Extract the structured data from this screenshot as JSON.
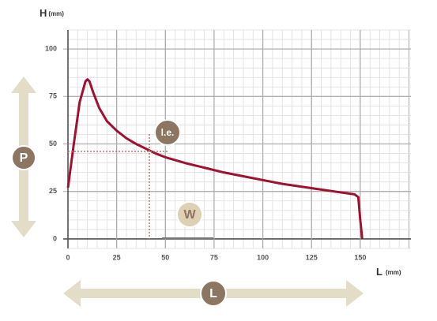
{
  "chart_data": {
    "type": "line",
    "y_label": "H",
    "y_unit": "(mm)",
    "x_label": "L",
    "x_unit": "(mm)",
    "annotations": {
      "p": "P",
      "le": "l.e.",
      "w": "W",
      "l": "L"
    },
    "x": [
      0,
      3,
      6,
      9,
      10,
      11,
      13,
      16,
      20,
      25,
      30,
      35,
      40,
      45,
      50,
      60,
      70,
      80,
      90,
      100,
      110,
      120,
      130,
      140,
      147,
      149,
      150,
      151
    ],
    "series": [
      {
        "color": "#a0112f",
        "values": [
          27,
          50,
          72,
          83,
          84,
          83,
          77,
          69,
          62,
          57,
          53,
          50,
          47.5,
          45,
          43,
          40,
          37.5,
          35,
          33,
          31,
          29,
          27.5,
          26,
          24.5,
          23.5,
          22,
          10,
          0
        ]
      }
    ],
    "xlim": [
      0,
      176
    ],
    "ylim": [
      -5,
      110
    ],
    "xticks": [
      0,
      25,
      50,
      75,
      100,
      125,
      150
    ],
    "yticks": [
      0,
      25,
      50,
      75,
      100
    ],
    "grid": true
  }
}
